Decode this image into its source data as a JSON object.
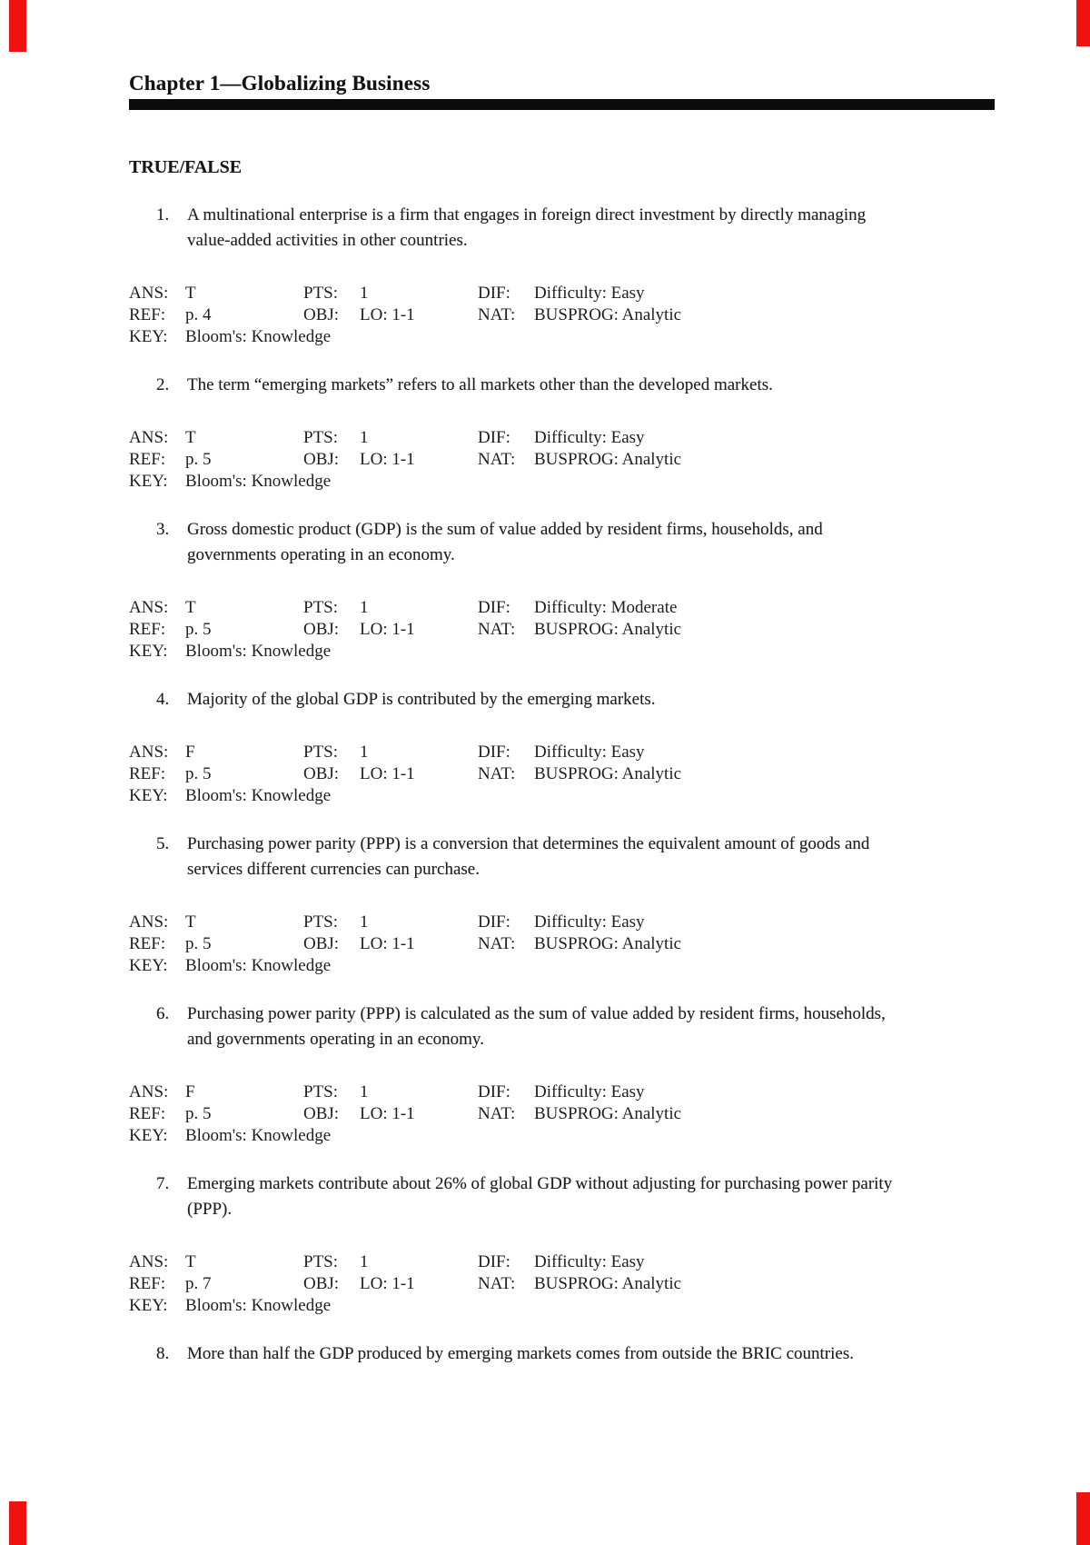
{
  "page": {
    "header": {
      "title": "Chapter 1—Globalizing Business"
    },
    "section": {
      "heading": "TRUE/FALSE"
    },
    "labels": {
      "ans": "ANS:",
      "pts": "PTS:",
      "dif": "DIF:",
      "ref": "REF:",
      "obj": "OBJ:",
      "nat": "NAT:",
      "key": "KEY:"
    },
    "questions": [
      {
        "number": "1.",
        "lines": [
          "A multinational enterprise is a firm that engages in foreign direct investment by directly managing",
          "value-added activities in other countries."
        ],
        "answers": {
          "ans": "T",
          "pts": "1",
          "dif": "Difficulty: Easy",
          "ref": "p. 4",
          "obj": "LO: 1-1",
          "nat": "BUSPROG: Analytic",
          "key": "Bloom's: Knowledge"
        }
      },
      {
        "number": "2.",
        "lines": [
          "The term “emerging markets” refers to all markets other than the developed markets."
        ],
        "answers": {
          "ans": "T",
          "pts": "1",
          "dif": "Difficulty: Easy",
          "ref": "p. 5",
          "obj": "LO: 1-1",
          "nat": "BUSPROG: Analytic",
          "key": "Bloom's: Knowledge"
        }
      },
      {
        "number": "3.",
        "lines": [
          "Gross domestic product (GDP) is the sum of value added by resident firms, households, and",
          "governments operating in an economy."
        ],
        "answers": {
          "ans": "T",
          "pts": "1",
          "dif": "Difficulty: Moderate",
          "ref": "p. 5",
          "obj": "LO: 1-1",
          "nat": "BUSPROG: Analytic",
          "key": "Bloom's: Knowledge"
        }
      },
      {
        "number": "4.",
        "lines": [
          "Majority of the global GDP is contributed by the emerging markets."
        ],
        "answers": {
          "ans": "F",
          "pts": "1",
          "dif": "Difficulty: Easy",
          "ref": "p. 5",
          "obj": "LO: 1-1",
          "nat": "BUSPROG: Analytic",
          "key": "Bloom's: Knowledge"
        }
      },
      {
        "number": "5.",
        "lines": [
          "Purchasing power parity (PPP) is a conversion that determines the equivalent amount of goods and",
          "services different currencies can purchase."
        ],
        "answers": {
          "ans": "T",
          "pts": "1",
          "dif": "Difficulty: Easy",
          "ref": "p. 5",
          "obj": "LO: 1-1",
          "nat": "BUSPROG: Analytic",
          "key": "Bloom's: Knowledge"
        }
      },
      {
        "number": "6.",
        "lines": [
          "Purchasing power parity (PPP) is calculated as the sum of value added by resident firms, households,",
          "and governments operating in an economy."
        ],
        "answers": {
          "ans": "F",
          "pts": "1",
          "dif": "Difficulty: Easy",
          "ref": "p. 5",
          "obj": "LO: 1-1",
          "nat": "BUSPROG: Analytic",
          "key": "Bloom's: Knowledge"
        }
      },
      {
        "number": "7.",
        "lines": [
          "Emerging markets contribute about 26% of global GDP without adjusting for purchasing power parity",
          "(PPP)."
        ],
        "answers": {
          "ans": "T",
          "pts": "1",
          "dif": "Difficulty: Easy",
          "ref": "p. 7",
          "obj": "LO: 1-1",
          "nat": "BUSPROG: Analytic",
          "key": "Bloom's: Knowledge"
        }
      },
      {
        "number": "8.",
        "lines": [
          "More than half the GDP produced by emerging markets comes from outside the BRIC countries."
        ],
        "answers": null
      }
    ],
    "colors": {
      "rule": "#0b0b0b",
      "text": "#1e1e1e",
      "edge_marker": "#ee1311"
    }
  }
}
